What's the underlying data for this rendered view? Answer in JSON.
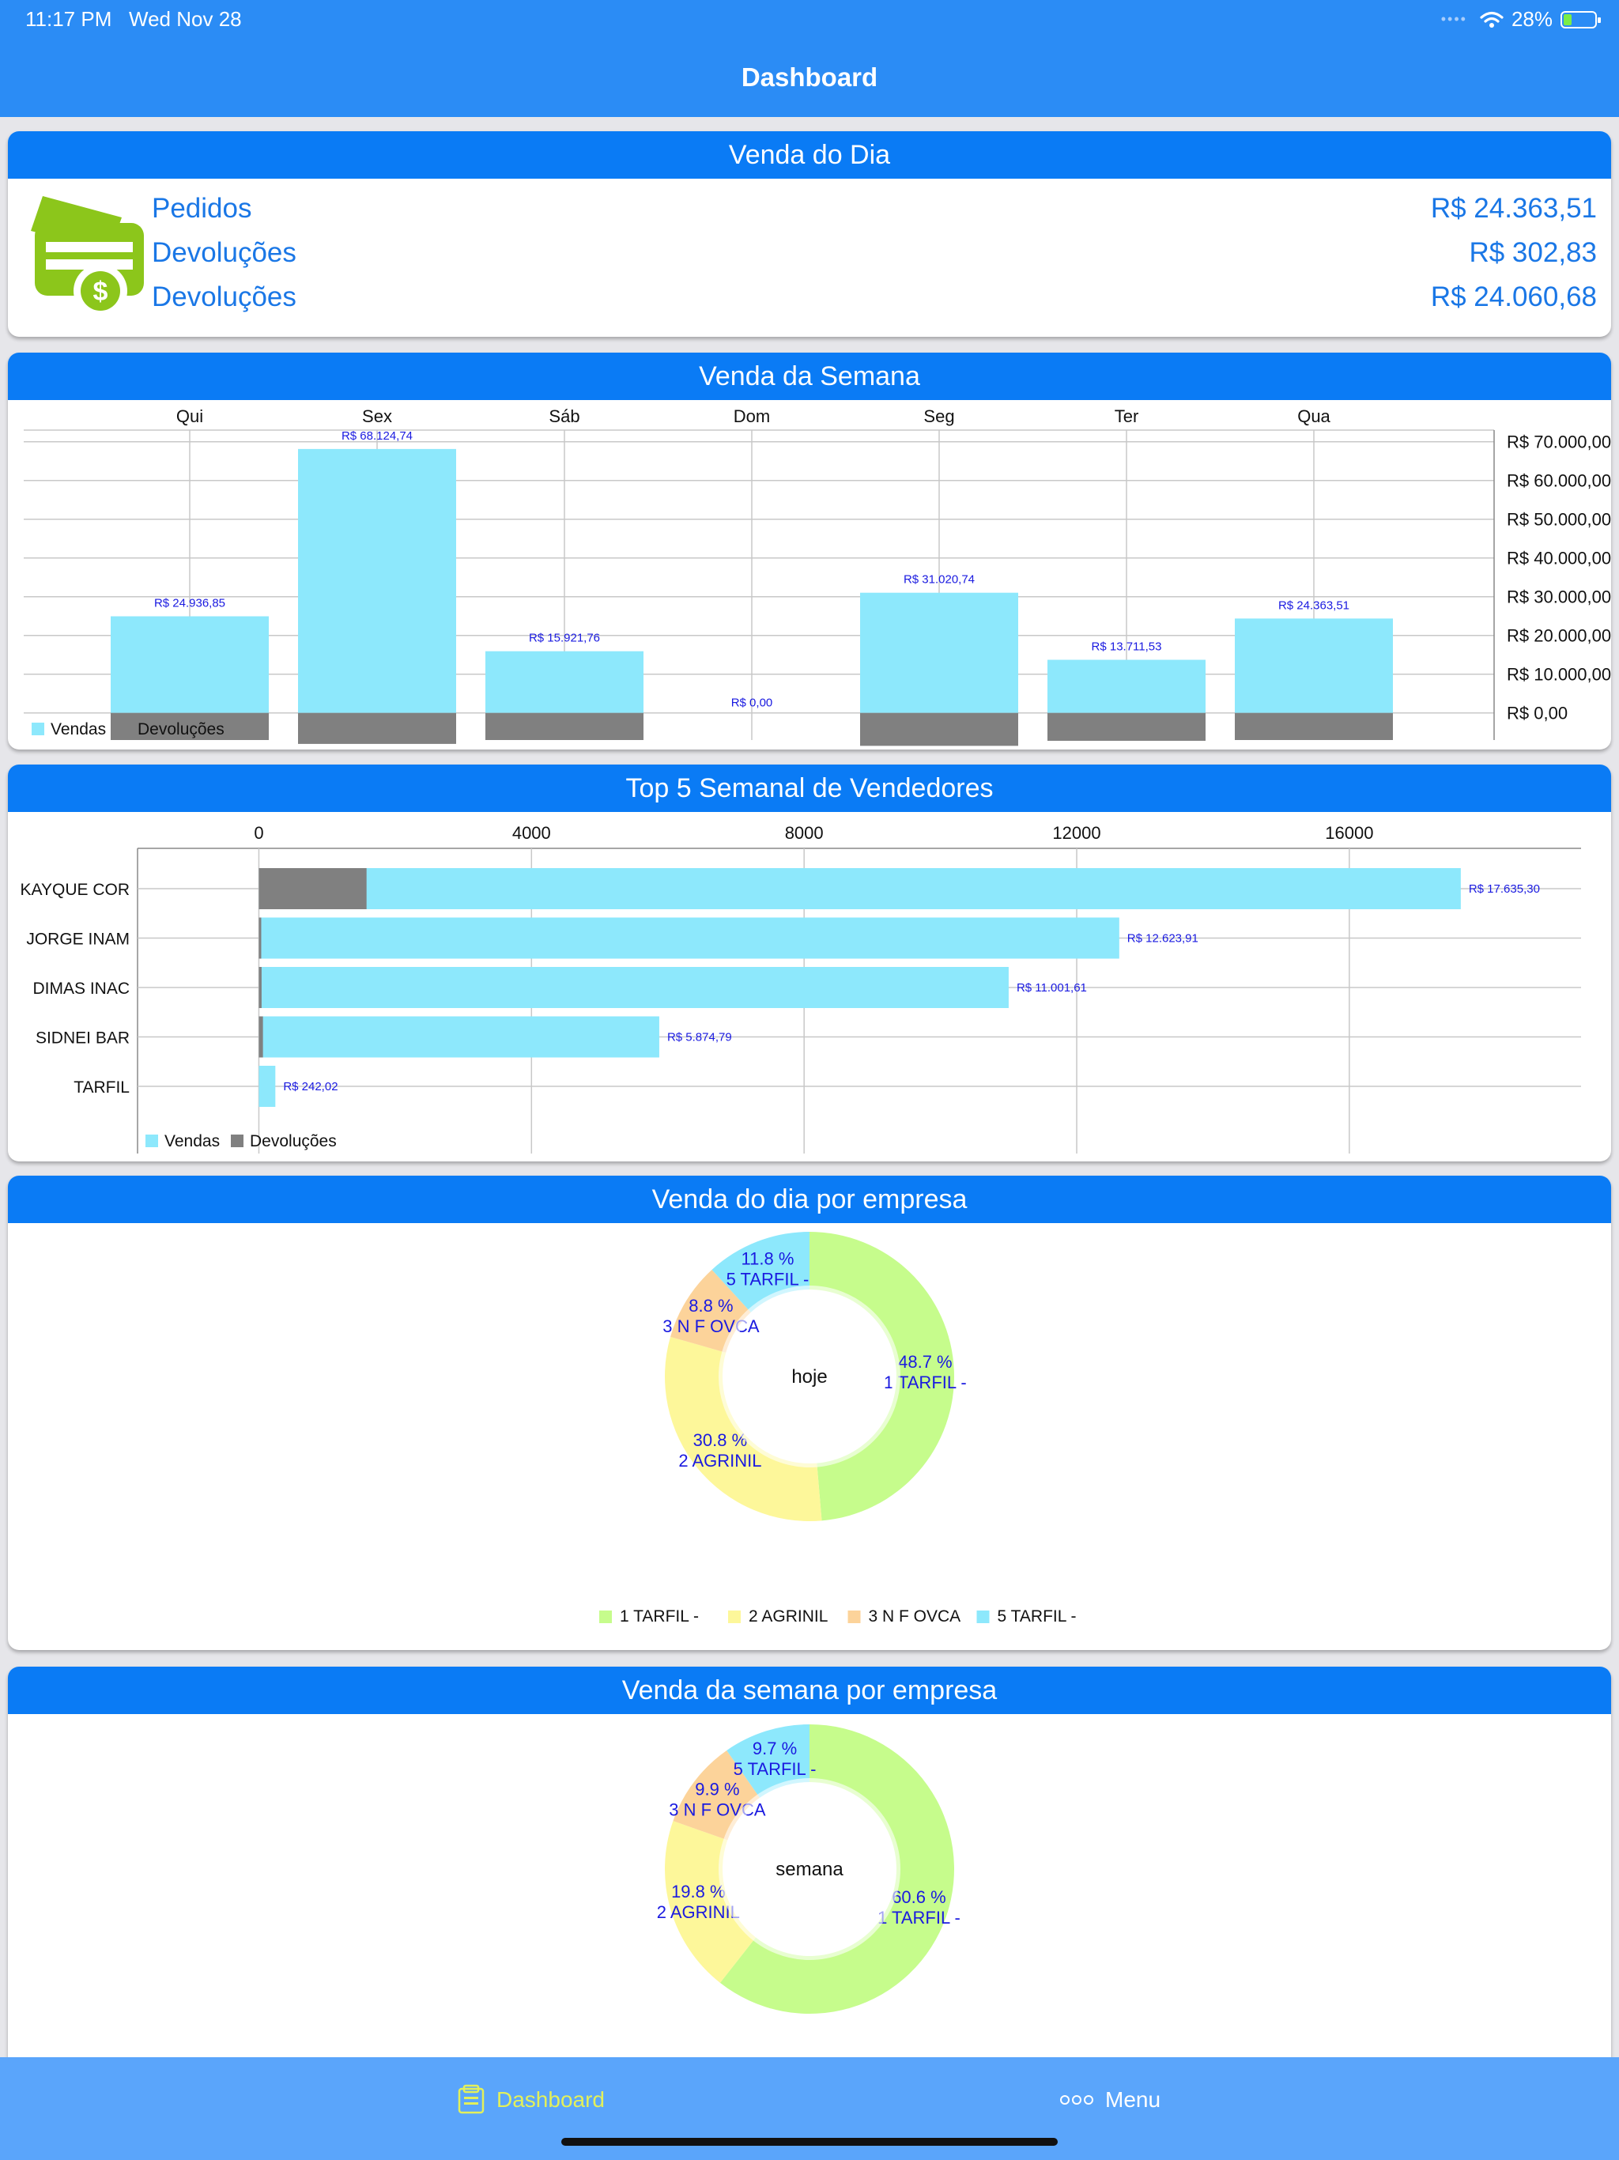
{
  "status": {
    "time": "11:17 PM",
    "date": "Wed Nov 28",
    "battery": "28%"
  },
  "nav": {
    "title": "Dashboard"
  },
  "venda_dia": {
    "title": "Venda do Dia",
    "rows": [
      {
        "label": "Pedidos",
        "value": "R$ 24.363,51"
      },
      {
        "label": "Devoluções",
        "value": "R$ 302,83"
      },
      {
        "label": "Devoluções",
        "value": "R$ 24.060,68"
      }
    ]
  },
  "venda_semana": {
    "title": "Venda da Semana",
    "legend": [
      "Vendas",
      "Devoluções"
    ]
  },
  "top5": {
    "title": "Top 5 Semanal de Vendedores",
    "legend": [
      "Vendas",
      "Devoluções"
    ]
  },
  "empresa_dia": {
    "title": "Venda do dia por empresa",
    "center": "hoje",
    "legend": [
      "1 TARFIL -",
      "2 AGRINIL",
      "3 N F OVCA",
      "5 TARFIL -"
    ]
  },
  "empresa_semana": {
    "title": "Venda da semana por empresa",
    "center": "semana"
  },
  "tabbar": {
    "dashboard": "Dashboard",
    "menu": "Menu"
  },
  "colors": {
    "header": "#0a7bf5",
    "vendas": "#8de8fc",
    "devolucoes": "#808080",
    "label_blue": "#1a1ae0",
    "pie": [
      "#c6fc8c",
      "#fdf79a",
      "#fcd39a",
      "#8de8fc"
    ]
  },
  "chart_data": [
    {
      "type": "bar",
      "title": "Venda da Semana",
      "categories": [
        "Qui",
        "Sex",
        "Sáb",
        "Dom",
        "Seg",
        "Ter",
        "Qua"
      ],
      "series": [
        {
          "name": "Vendas",
          "values": [
            24936.85,
            68124.74,
            15921.76,
            0,
            31020.74,
            13711.53,
            24363.51
          ]
        },
        {
          "name": "Devoluções",
          "values": [
            7000,
            8000,
            7000,
            0,
            8500,
            7200,
            7000
          ]
        }
      ],
      "value_labels": [
        "R$ 24.936,85",
        "R$ 68.124,74",
        "R$ 15.921,76",
        "R$ 0,00",
        "R$ 31.020,74",
        "R$ 13.711,53",
        "R$ 24.363,51"
      ],
      "y_ticks": [
        "R$ 0,00",
        "R$ 10.000,00",
        "R$ 20.000,00",
        "R$ 30.000,00",
        "R$ 40.000,00",
        "R$ 50.000,00",
        "R$ 60.000,00",
        "R$ 70.000,00"
      ],
      "ylim": [
        -7000,
        73000
      ],
      "grid": true,
      "legend": "bottom-left"
    },
    {
      "type": "bar",
      "orientation": "horizontal",
      "title": "Top 5 Semanal de Vendedores",
      "categories": [
        "KAYQUE COR",
        "JORGE INAM",
        "DIMAS INAC",
        "SIDNEI BAR",
        "TARFIL"
      ],
      "series": [
        {
          "name": "Vendas",
          "values": [
            17635.3,
            12623.91,
            11001.61,
            5874.79,
            242.02
          ]
        },
        {
          "name": "Devoluções",
          "values": [
            1580,
            30,
            40,
            60,
            0
          ]
        }
      ],
      "value_labels": [
        "R$ 17.635,30",
        "R$ 12.623,91",
        "R$ 11.001,61",
        "R$ 5.874,79",
        "R$ 242,02"
      ],
      "x_ticks": [
        0,
        4000,
        8000,
        12000,
        16000
      ],
      "xlim": [
        -1780,
        19400
      ],
      "grid": true,
      "legend": "bottom-left"
    },
    {
      "type": "pie",
      "title": "Venda do dia por empresa",
      "center_text": "hoje",
      "labels": [
        "1 TARFIL -",
        "2 AGRINIL",
        "3 N F OVCA",
        "5 TARFIL -"
      ],
      "values": [
        48.7,
        30.8,
        8.8,
        11.8
      ],
      "value_labels": [
        "48.7 %",
        "30.8 %",
        "8.8 %",
        "11.8 %"
      ],
      "legend": "bottom"
    },
    {
      "type": "pie",
      "title": "Venda da semana por empresa",
      "center_text": "semana",
      "labels": [
        "1 TARFIL -",
        "2 AGRINIL",
        "3 N F OVCA",
        "5 TARFIL -"
      ],
      "values": [
        60.6,
        19.8,
        9.9,
        9.7
      ],
      "value_labels": [
        "60.6 %",
        "19.8 %",
        "9.9 %",
        "9.7 %"
      ]
    }
  ]
}
